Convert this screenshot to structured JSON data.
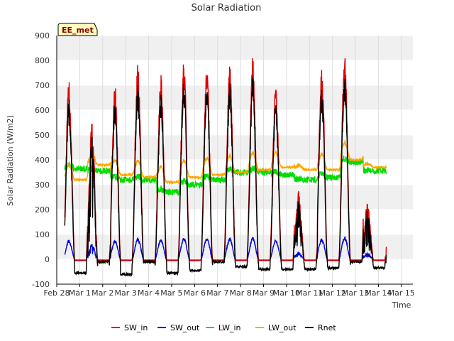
{
  "chart_data": {
    "type": "line",
    "title": "Solar Radiation",
    "xlabel": "Time",
    "ylabel": "Solar Radiation (W/m2)",
    "site_label": "EE_met",
    "ylim": [
      -100,
      900
    ],
    "xlim": [
      0,
      15.5
    ],
    "y_ticks": [
      -100,
      0,
      100,
      200,
      300,
      400,
      500,
      600,
      700,
      800,
      900
    ],
    "x_ticks": [
      {
        "x": 0,
        "label": "Feb 28"
      },
      {
        "x": 1,
        "label": "Mar 1"
      },
      {
        "x": 2,
        "label": "Mar 2"
      },
      {
        "x": 3,
        "label": "Mar 3"
      },
      {
        "x": 4,
        "label": "Mar 4"
      },
      {
        "x": 5,
        "label": "Mar 5"
      },
      {
        "x": 6,
        "label": "Mar 6"
      },
      {
        "x": 7,
        "label": "Mar 7"
      },
      {
        "x": 8,
        "label": "Mar 8"
      },
      {
        "x": 9,
        "label": "Mar 9"
      },
      {
        "x": 10,
        "label": "Mar 10"
      },
      {
        "x": 11,
        "label": "Mar 11"
      },
      {
        "x": 12,
        "label": "Mar 12"
      },
      {
        "x": 13,
        "label": "Mar 13"
      },
      {
        "x": 14,
        "label": "Mar 14"
      },
      {
        "x": 15,
        "label": "Mar 15"
      }
    ],
    "grid": true,
    "background_bands": "alternating light grey",
    "legend_position": "bottom",
    "data_start_x": 0.35,
    "data_end_x": 14.35,
    "days": [
      {
        "peak": 715,
        "in_peaks": [
          0.45,
          0.5
        ]
      },
      {
        "peak": 560,
        "in_peaks": [
          0.45
        ]
      },
      {
        "peak": 710,
        "in_peaks": [
          0.35,
          0.45
        ]
      },
      {
        "peak": 785,
        "in_peaks": [
          0.4,
          0.55
        ]
      },
      {
        "peak": 745,
        "in_peaks": [
          0.55
        ]
      },
      {
        "peak": 800,
        "in_peaks": [
          0.55
        ]
      },
      {
        "peak": 795,
        "in_peaks": [
          0.55
        ]
      },
      {
        "peak": 785,
        "in_peaks": [
          0.55
        ]
      },
      {
        "peak": 815,
        "in_peaks": [
          0.55
        ]
      },
      {
        "peak": 710,
        "in_peaks": [
          0.6
        ]
      },
      {
        "peak": 275,
        "in_peaks": [
          0.55
        ]
      },
      {
        "peak": 780,
        "in_peaks": [
          0.55
        ]
      },
      {
        "peak": 825,
        "in_peaks": [
          0.55
        ]
      },
      {
        "peak": 230,
        "in_peaks": [
          0.55
        ]
      }
    ],
    "series": [
      {
        "name": "SW_in",
        "color": "#dd0000",
        "night": -5,
        "albedo": 0,
        "lw_in_base": [],
        "lw_out_base": []
      },
      {
        "name": "SW_out",
        "color": "#0000dd"
      },
      {
        "name": "LW_in",
        "color": "#00dd00",
        "values_by_day": [
          365,
          355,
          320,
          320,
          270,
          300,
          320,
          350,
          350,
          340,
          320,
          330,
          390,
          355
        ]
      },
      {
        "name": "LW_out",
        "color": "#ffa500",
        "values_by_day": [
          320,
          380,
          340,
          330,
          310,
          330,
          340,
          350,
          360,
          370,
          360,
          360,
          400,
          370
        ]
      },
      {
        "name": "Rnet",
        "color": "#000000",
        "night_by_day": [
          -55,
          -10,
          -60,
          -10,
          -55,
          -45,
          -10,
          -30,
          -40,
          -40,
          -40,
          -35,
          -10,
          -35
        ]
      }
    ]
  }
}
